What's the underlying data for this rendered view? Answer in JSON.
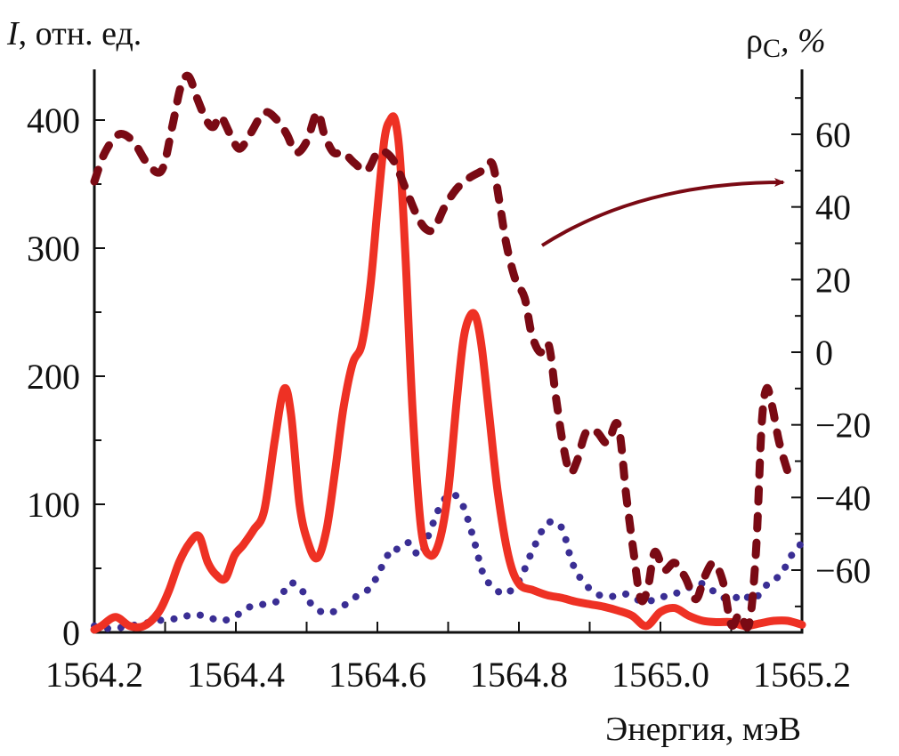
{
  "chart_data": {
    "type": "line",
    "title": "",
    "xlabel": "Энергия, мэВ",
    "ylabel_left_italic": "I",
    "ylabel_left_rest": ", отн. ед.",
    "ylabel_right_symbol": "ρ",
    "ylabel_right_sub": "C",
    "ylabel_right_rest": ", %",
    "xlim": [
      1564.2,
      1565.2
    ],
    "ylim_left": [
      0,
      400
    ],
    "ylim_right": [
      -75,
      75
    ],
    "x_ticks": [
      1564.2,
      1564.4,
      1564.6,
      1564.8,
      1565.0,
      1565.2
    ],
    "x_tick_labels": [
      "1564.2",
      "1564.4",
      "1564.6",
      "1564.8",
      "1565.0",
      "1565.2"
    ],
    "x_minor_ticks": [
      1564.3,
      1564.5,
      1564.7,
      1564.9,
      1565.1
    ],
    "y_left_ticks": [
      0,
      100,
      200,
      300,
      400
    ],
    "y_left_tick_labels": [
      "0",
      "100",
      "200",
      "300",
      "400"
    ],
    "y_left_minor_ticks": [
      50,
      150,
      250,
      350
    ],
    "y_right_ticks": [
      -60,
      -40,
      -20,
      0,
      20,
      40,
      60
    ],
    "y_right_tick_labels": [
      "−60",
      "−40",
      "−20",
      "0",
      "20",
      "40",
      "60"
    ],
    "y_right_minor_ticks": [
      -70,
      -50,
      -30,
      -10,
      10,
      30,
      50,
      70
    ],
    "grid": false,
    "legend": "none",
    "annotation": {
      "type": "arrow",
      "meaning": "dashed curve refers to right axis",
      "color": "#7a0a14"
    },
    "series": [
      {
        "name": "intensity-solid",
        "axis": "left",
        "style": "solid",
        "color": "#ee3124",
        "x": [
          1564.2,
          1564.21,
          1564.23,
          1564.25,
          1564.27,
          1564.29,
          1564.305,
          1564.32,
          1564.335,
          1564.348,
          1564.36,
          1564.372,
          1564.385,
          1564.398,
          1564.41,
          1564.425,
          1564.44,
          1564.455,
          1564.468,
          1564.478,
          1564.49,
          1564.502,
          1564.515,
          1564.528,
          1564.54,
          1564.552,
          1564.565,
          1564.578,
          1564.59,
          1564.6,
          1564.61,
          1564.618,
          1564.625,
          1564.632,
          1564.64,
          1564.65,
          1564.662,
          1564.675,
          1564.688,
          1564.7,
          1564.712,
          1564.722,
          1564.732,
          1564.74,
          1564.748,
          1564.758,
          1564.77,
          1564.785,
          1564.8,
          1564.82,
          1564.84,
          1564.86,
          1564.88,
          1564.9,
          1564.92,
          1564.94,
          1564.96,
          1564.98,
          1565.0,
          1565.02,
          1565.04,
          1565.06,
          1565.08,
          1565.1,
          1565.12,
          1565.14,
          1565.16,
          1565.18,
          1565.2
        ],
        "values": [
          2,
          5,
          12,
          5,
          5,
          15,
          32,
          55,
          70,
          75,
          55,
          45,
          42,
          60,
          68,
          80,
          95,
          150,
          190,
          170,
          100,
          70,
          58,
          80,
          125,
          175,
          210,
          225,
          270,
          330,
          385,
          400,
          400,
          370,
          290,
          170,
          80,
          60,
          72,
          110,
          180,
          230,
          248,
          245,
          220,
          170,
          110,
          60,
          38,
          33,
          29,
          27,
          24,
          22,
          20,
          17,
          13,
          5,
          16,
          19,
          13,
          9,
          8,
          8,
          5,
          7,
          9,
          9,
          6
        ]
      },
      {
        "name": "intensity-dotted",
        "axis": "left",
        "style": "dotted",
        "color": "#3a2e94",
        "x": [
          1564.2,
          1564.22,
          1564.24,
          1564.26,
          1564.28,
          1564.3,
          1564.32,
          1564.34,
          1564.36,
          1564.38,
          1564.4,
          1564.42,
          1564.44,
          1564.46,
          1564.475,
          1564.49,
          1564.51,
          1564.53,
          1564.55,
          1564.57,
          1564.59,
          1564.605,
          1564.62,
          1564.63,
          1564.645,
          1564.66,
          1564.675,
          1564.69,
          1564.705,
          1564.72,
          1564.735,
          1564.75,
          1564.765,
          1564.78,
          1564.8,
          1564.82,
          1564.84,
          1564.86,
          1564.875,
          1564.89,
          1564.91,
          1564.93,
          1564.95,
          1564.97,
          1564.99,
          1565.005,
          1565.02,
          1565.04,
          1565.06,
          1565.08,
          1565.1,
          1565.115,
          1565.13,
          1565.14,
          1565.155,
          1565.17,
          1565.185,
          1565.2
        ],
        "values": [
          5,
          3,
          4,
          6,
          8,
          10,
          11,
          14,
          12,
          9,
          13,
          20,
          22,
          25,
          38,
          35,
          20,
          15,
          20,
          28,
          35,
          50,
          65,
          65,
          70,
          60,
          80,
          100,
          108,
          100,
          75,
          45,
          35,
          30,
          40,
          65,
          85,
          82,
          55,
          40,
          30,
          28,
          30,
          25,
          25,
          28,
          30,
          35,
          38,
          30,
          25,
          30,
          25,
          30,
          40,
          45,
          60,
          70
        ]
      },
      {
        "name": "polarization-dashed",
        "axis": "right",
        "style": "dashed",
        "color": "#7a0a14",
        "x": [
          1564.2,
          1564.215,
          1564.235,
          1564.255,
          1564.275,
          1564.295,
          1564.31,
          1564.322,
          1564.333,
          1564.345,
          1564.358,
          1564.368,
          1564.378,
          1564.392,
          1564.405,
          1564.42,
          1564.44,
          1564.458,
          1564.472,
          1564.485,
          1564.5,
          1564.515,
          1564.525,
          1564.538,
          1564.552,
          1564.568,
          1564.585,
          1564.6,
          1564.612,
          1564.625,
          1564.64,
          1564.655,
          1564.668,
          1564.68,
          1564.695,
          1564.712,
          1564.73,
          1564.748,
          1564.762,
          1564.772,
          1564.782,
          1564.795,
          1564.808,
          1564.818,
          1564.83,
          1564.842,
          1564.852,
          1564.862,
          1564.872,
          1564.882,
          1564.895,
          1564.91,
          1564.925,
          1564.94,
          1564.952,
          1564.962,
          1564.972,
          1564.982,
          1564.992,
          1565.005,
          1565.02,
          1565.035,
          1565.05,
          1565.062,
          1565.075,
          1565.088,
          1565.1,
          1565.112,
          1565.125,
          1565.135,
          1565.143,
          1565.15,
          1565.158,
          1565.168,
          1565.18
        ],
        "values": [
          47,
          55,
          60,
          58,
          52,
          50,
          62,
          73,
          76,
          70,
          64,
          62,
          65,
          60,
          56,
          60,
          66,
          64,
          60,
          55,
          58,
          66,
          60,
          55,
          55,
          52,
          50,
          55,
          55,
          52,
          45,
          38,
          34,
          34,
          40,
          45,
          48,
          50,
          52,
          42,
          30,
          20,
          15,
          5,
          0,
          2,
          -12,
          -25,
          -33,
          -30,
          -22,
          -22,
          -25,
          -20,
          -40,
          -55,
          -68,
          -65,
          -55,
          -60,
          -58,
          -62,
          -68,
          -62,
          -58,
          -63,
          -75,
          -72,
          -75,
          -55,
          -20,
          -10,
          -15,
          -25,
          -33
        ]
      }
    ]
  }
}
